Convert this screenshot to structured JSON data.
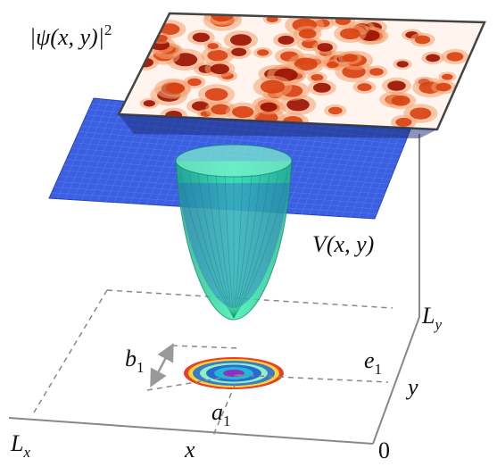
{
  "labels": {
    "psi": {
      "base": "|ψ(x, y)|",
      "sup": "2"
    },
    "potential": "V(x, y)",
    "ly": {
      "base": "L",
      "sub": "y"
    },
    "y": "y",
    "lx": {
      "base": "L",
      "sub": "x"
    },
    "x": "x",
    "origin": "0",
    "b1": {
      "base": "b",
      "sub": "1"
    },
    "a1": {
      "base": "a",
      "sub": "1"
    },
    "e1": {
      "base": "e",
      "sub": "1"
    }
  }
}
